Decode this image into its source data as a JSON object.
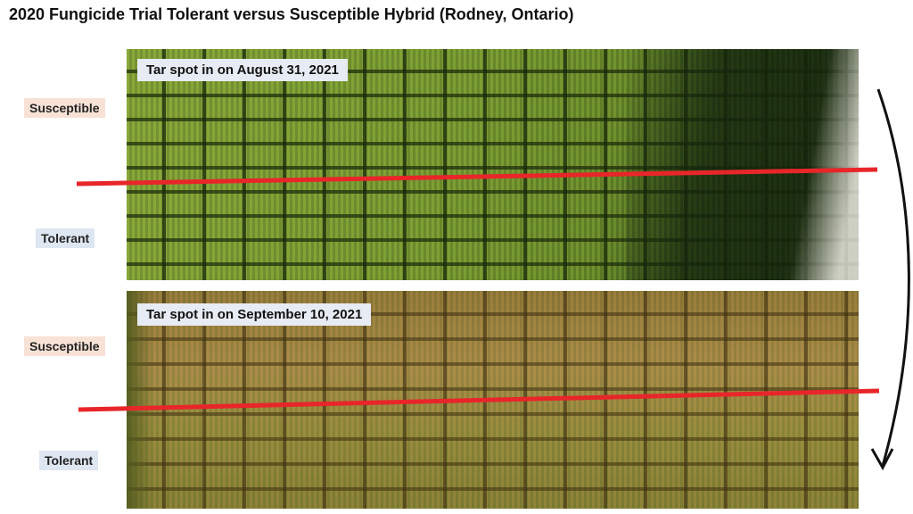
{
  "title": "2020 Fungicide Trial Tolerant versus Susceptible Hybrid (Rodney, Ontario)",
  "panels": [
    {
      "date_label": "Tar spot in on August 31, 2021",
      "labels": {
        "susceptible": "Susceptible",
        "tolerant": "Tolerant"
      }
    },
    {
      "date_label": "Tar spot in on September 10, 2021",
      "labels": {
        "susceptible": "Susceptible",
        "tolerant": "Tolerant"
      }
    }
  ],
  "colors": {
    "divider_line": "#e8262a",
    "arrow": "#111111",
    "susceptible_bg": "#f8e2d6",
    "tolerant_bg": "#dde6f1"
  }
}
